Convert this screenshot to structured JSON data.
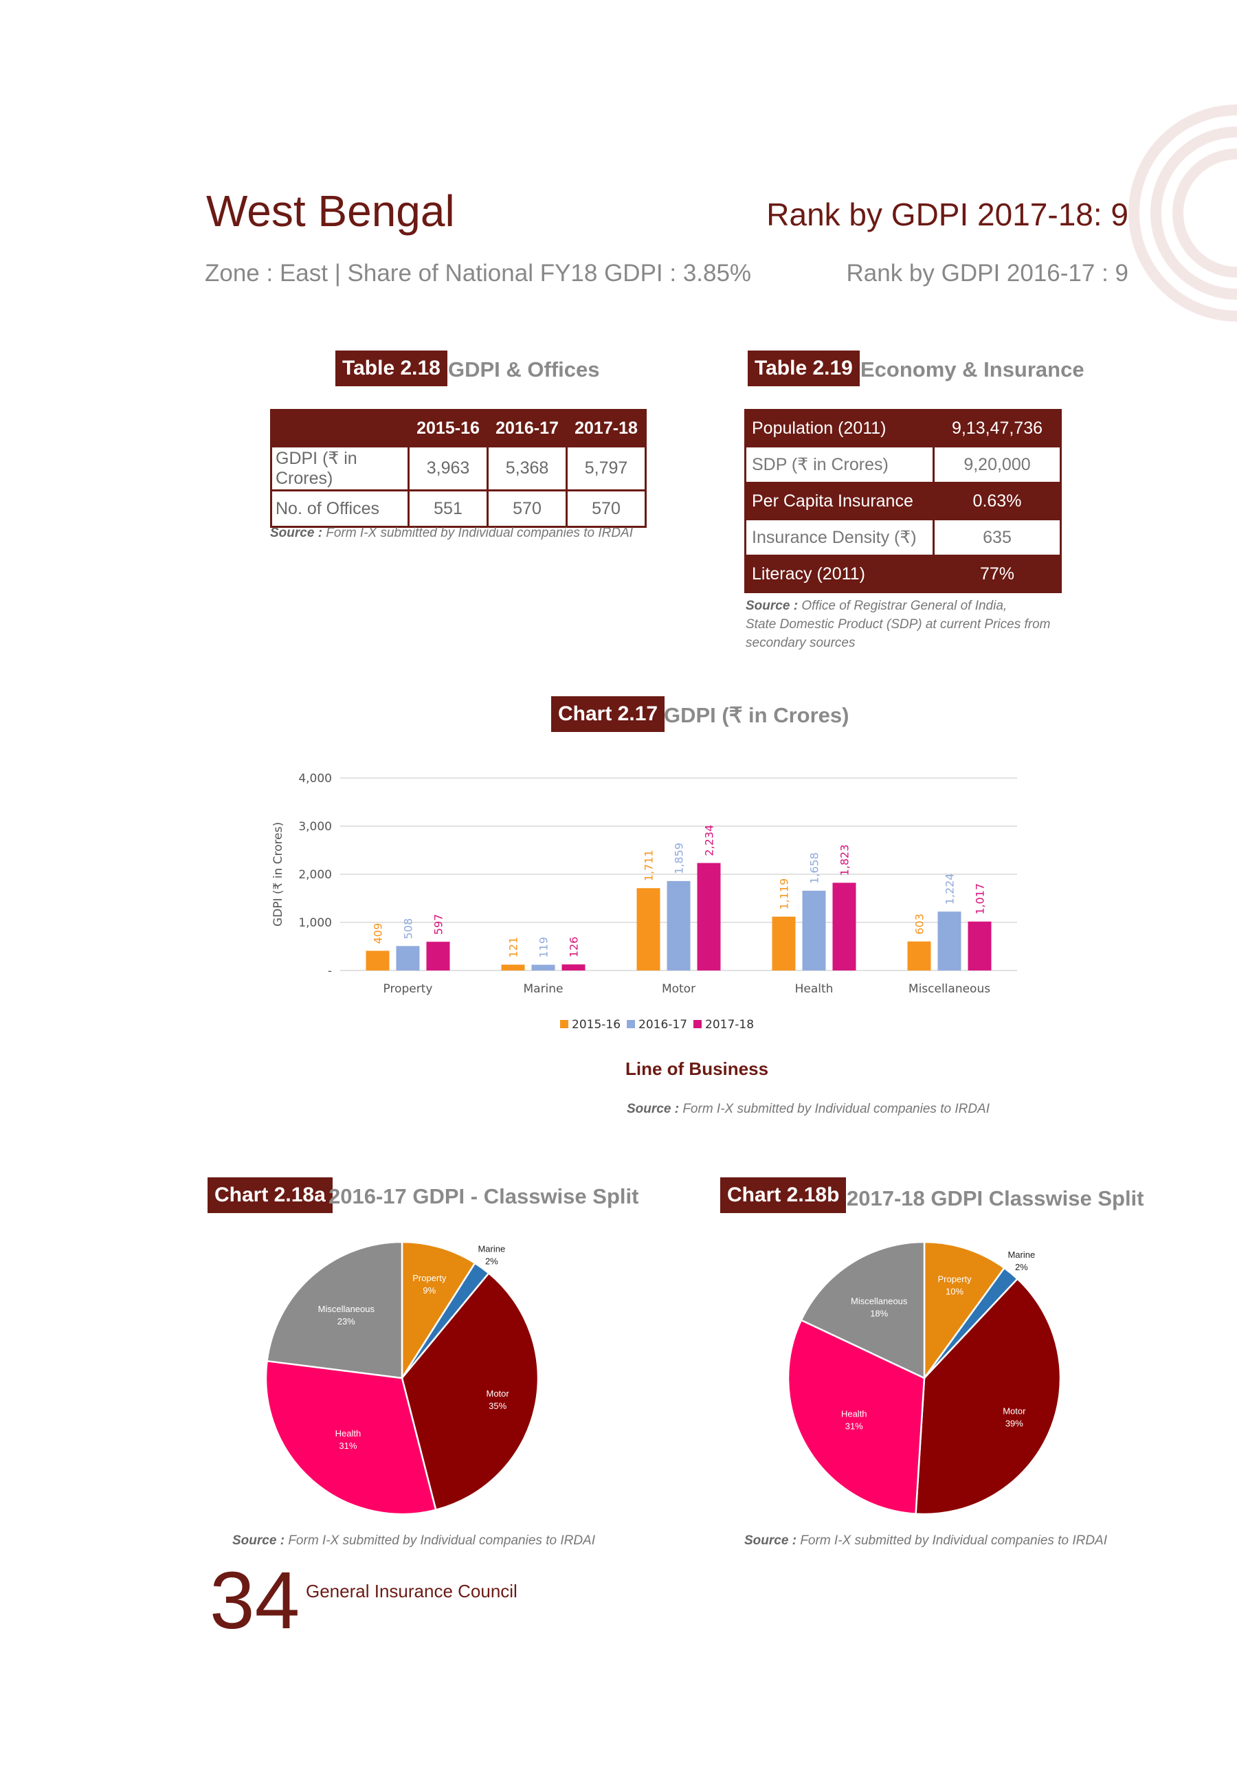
{
  "header": {
    "state": "West Bengal",
    "rank_current": "Rank by GDPI 2017-18: 9",
    "zone_line": "Zone : East | Share of National FY18 GDPI : 3.85%",
    "rank_previous": "Rank by GDPI 2016-17 : 9"
  },
  "table_2_18": {
    "tag": "Table 2.18",
    "title": "GDPI & Offices",
    "columns": [
      "2015-16",
      "2016-17",
      "2017-18"
    ],
    "rows": [
      {
        "label": "GDPI (₹ in Crores)",
        "values": [
          "3,963",
          "5,368",
          "5,797"
        ]
      },
      {
        "label": "No. of Offices",
        "values": [
          "551",
          "570",
          "570"
        ]
      }
    ],
    "source_label": "Source :",
    "source_text": "Form I-X submitted by Individual companies to IRDAI"
  },
  "table_2_19": {
    "tag": "Table 2.19",
    "title": "Economy & Insurance",
    "rows": [
      {
        "label": "Population (2011)",
        "value": "9,13,47,736"
      },
      {
        "label": "SDP (₹ in Crores)",
        "value": "9,20,000"
      },
      {
        "label": "Per Capita Insurance",
        "value": "0.63%"
      },
      {
        "label": "Insurance Density (₹)",
        "value": "635"
      },
      {
        "label": "Literacy (2011)",
        "value": "77%"
      }
    ],
    "source_label": "Source :",
    "source_lines": [
      "Office of Registrar General of India,",
      "State Domestic Product (SDP) at current Prices from",
      "secondary sources"
    ]
  },
  "chart_2_17": {
    "tag": "Chart 2.17",
    "title": "GDPI (₹ in Crores)",
    "subtitle": "Line of Business",
    "source_label": "Source :",
    "source_text": "Form I-X submitted by Individual companies to IRDAI"
  },
  "chart_2_18a": {
    "tag": "Chart 2.18a",
    "title": "2016-17 GDPI - Classwise Split",
    "source_label": "Source :",
    "source_text": "Form I-X submitted by Individual companies to IRDAI"
  },
  "chart_2_18b": {
    "tag": "Chart 2.18b",
    "title": "2017-18 GDPI Classwise Split",
    "source_label": "Source :",
    "source_text": "Form I-X submitted by Individual companies to IRDAI"
  },
  "chart_data": [
    {
      "type": "bar",
      "ylabel": "GDPI (₹ in Crores)",
      "ylim": [
        0,
        4000
      ],
      "yticks": [
        "-",
        "1,000",
        "2,000",
        "3,000",
        "4,000"
      ],
      "categories": [
        "Property",
        "Marine",
        "Motor",
        "Health",
        "Miscellaneous"
      ],
      "series": [
        {
          "name": "2015-16",
          "color": "#f7941d",
          "values": [
            409,
            121,
            1711,
            1119,
            603
          ],
          "labels": [
            "409",
            "121",
            "1,711",
            "1,119",
            "603"
          ]
        },
        {
          "name": "2016-17",
          "color": "#8faadc",
          "values": [
            508,
            119,
            1859,
            1658,
            1224
          ],
          "labels": [
            "508",
            "119",
            "1,859",
            "1,658",
            "1,224"
          ]
        },
        {
          "name": "2017-18",
          "color": "#d6147d",
          "values": [
            597,
            126,
            2234,
            1823,
            1017
          ],
          "labels": [
            "597",
            "126",
            "2,234",
            "1,823",
            "1,017"
          ]
        }
      ],
      "legend": "bottom",
      "grid": true
    },
    {
      "type": "pie",
      "slices": [
        {
          "label": "Property",
          "pct_label": "9%",
          "value": 9,
          "color": "#e6890f"
        },
        {
          "label": "Marine",
          "pct_label": "2%",
          "value": 2,
          "color": "#2e75b6"
        },
        {
          "label": "Motor",
          "pct_label": "35%",
          "value": 35,
          "color": "#8b0000"
        },
        {
          "label": "Health",
          "pct_label": "31%",
          "value": 31,
          "color": "#ff0066"
        },
        {
          "label": "Miscellaneous",
          "pct_label": "23%",
          "value": 23,
          "color": "#8c8c8c"
        }
      ]
    },
    {
      "type": "pie",
      "slices": [
        {
          "label": "Property",
          "pct_label": "10%",
          "value": 10,
          "color": "#e6890f"
        },
        {
          "label": "Marine",
          "pct_label": "2%",
          "value": 2,
          "color": "#2e75b6"
        },
        {
          "label": "Motor",
          "pct_label": "39%",
          "value": 39,
          "color": "#8b0000"
        },
        {
          "label": "Health",
          "pct_label": "31%",
          "value": 31,
          "color": "#ff0066"
        },
        {
          "label": "Miscellaneous",
          "pct_label": "18%",
          "value": 18,
          "color": "#8c8c8c"
        }
      ]
    }
  ],
  "footer": {
    "page_number": "34",
    "org": "General Insurance Council"
  }
}
